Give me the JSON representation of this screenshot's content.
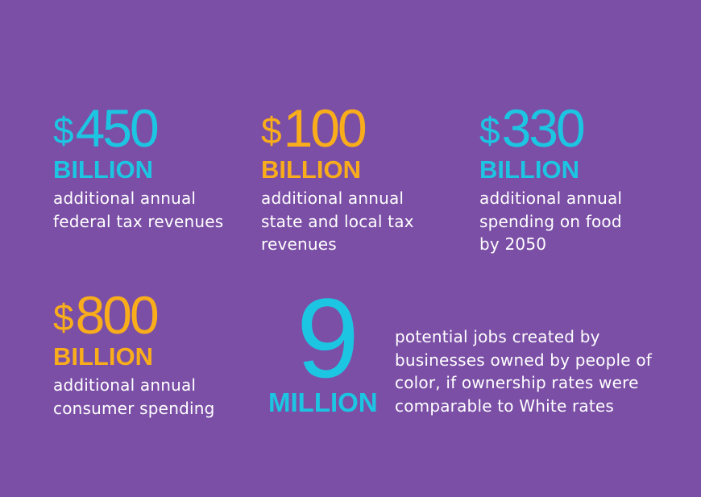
{
  "colors": {
    "background": "#7b4fa6",
    "cyan": "#1cc6e3",
    "gold": "#f9ad1b",
    "text": "#ffffff"
  },
  "stats": [
    {
      "currency": "$",
      "amount": "450",
      "unit": "BILLION",
      "description": "additional annual\nfederal tax revenues",
      "color": "#1cc6e3"
    },
    {
      "currency": "$",
      "amount": "100",
      "unit": "BILLION",
      "description": "additional annual\nstate and local tax\nrevenues",
      "color": "#f9ad1b"
    },
    {
      "currency": "$",
      "amount": "330",
      "unit": "BILLION",
      "description": "additional annual\nspending on food\nby 2050",
      "color": "#1cc6e3"
    },
    {
      "currency": "$",
      "amount": "800",
      "unit": "BILLION",
      "description": "additional annual\nconsumer spending",
      "color": "#f9ad1b"
    }
  ],
  "jobs": {
    "amount": "9",
    "unit": "MILLION",
    "description": "potential jobs created by\nbusinesses owned by people of\ncolor, if ownership rates were\ncomparable to White rates",
    "color": "#1cc6e3"
  }
}
